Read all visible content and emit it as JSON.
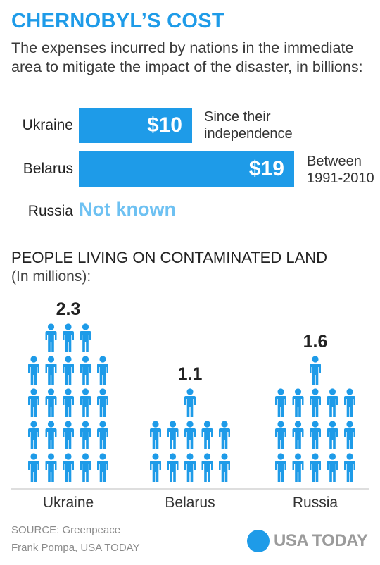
{
  "header": {
    "title": "CHERNOBYL’S COST",
    "subtitle": "The expenses incurred by nations in the immediate area to mitigate the impact of the disaster, in billions:"
  },
  "costs": {
    "ukraine": {
      "country": "Ukraine",
      "value": 10,
      "label": "$10",
      "note": [
        "Since their",
        "independence"
      ]
    },
    "belarus": {
      "country": "Belarus",
      "value": 19,
      "label": "$19",
      "note": [
        "Between",
        "1991-2010"
      ]
    },
    "russia": {
      "country": "Russia",
      "label": "Not known"
    }
  },
  "people": {
    "title": "PEOPLE LIVING ON CONTAMINATED LAND",
    "subtitle": "(In millions):"
  },
  "chart_data": {
    "type": "bar",
    "categories": [
      "Ukraine",
      "Belarus",
      "Russia"
    ],
    "values": [
      2.3,
      1.1,
      1.6
    ],
    "value_labels": [
      "2.3",
      "1.1",
      "1.6"
    ],
    "unit": "millions",
    "icon": "person-icon",
    "icon_value": 0.1,
    "color": "#1e9be8"
  },
  "footer": {
    "source": "SOURCE: Greenpeace",
    "credit": "Frank Pompa, USA TODAY",
    "logo": "USA TODAY"
  },
  "colors": {
    "accent": "#1e9be8",
    "light_accent": "#6ec1f2"
  }
}
